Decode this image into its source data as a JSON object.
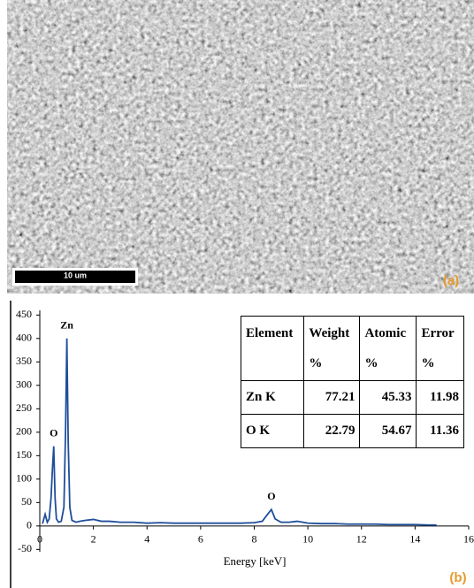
{
  "image": {
    "scale_bar": "10 um",
    "label": "(a)"
  },
  "chart_data": {
    "type": "line",
    "panel_label": "(b)",
    "x_label": "Energy [keV]",
    "xlim": [
      0,
      16
    ],
    "xticks": [
      0,
      2,
      4,
      6,
      8,
      10,
      12,
      14,
      16
    ],
    "ylim": [
      -55,
      460
    ],
    "yticks": [
      -50,
      0,
      50,
      100,
      150,
      200,
      250,
      300,
      350,
      400,
      450
    ],
    "series": [
      {
        "color": "#1f4e9a",
        "x": [
          0.1,
          0.2,
          0.28,
          0.35,
          0.42,
          0.47,
          0.52,
          0.57,
          0.62,
          0.7,
          0.8,
          0.9,
          0.96,
          1.01,
          1.06,
          1.12,
          1.2,
          1.35,
          1.5,
          1.7,
          2.0,
          2.3,
          2.6,
          3.0,
          3.5,
          4.0,
          4.5,
          5.0,
          5.5,
          6.0,
          6.5,
          7.0,
          7.5,
          8.0,
          8.3,
          8.5,
          8.64,
          8.78,
          9.0,
          9.3,
          9.6,
          10.0,
          10.5,
          11.0,
          11.5,
          12.0,
          12.5,
          13.0,
          13.5,
          14.0,
          14.5,
          14.8
        ],
        "values": [
          5,
          25,
          8,
          15,
          60,
          120,
          170,
          60,
          15,
          8,
          10,
          40,
          200,
          400,
          180,
          40,
          12,
          8,
          10,
          12,
          14,
          10,
          10,
          8,
          8,
          6,
          7,
          6,
          6,
          6,
          6,
          6,
          6,
          7,
          10,
          25,
          35,
          15,
          8,
          8,
          10,
          6,
          5,
          5,
          4,
          4,
          4,
          3,
          3,
          3,
          2,
          2
        ]
      }
    ],
    "annotations": [
      {
        "text": "Zn",
        "x": 1.01,
        "y": 400
      },
      {
        "text": "O",
        "x": 0.52,
        "y": 170
      },
      {
        "text": "O",
        "x": 8.64,
        "y": 35
      }
    ],
    "table": {
      "header": [
        [
          "Element"
        ],
        [
          "Weight",
          "%"
        ],
        [
          "Atomic",
          "%"
        ],
        [
          "Error",
          "%"
        ]
      ],
      "rows": [
        [
          "Zn K",
          "77.21",
          "45.33",
          "11.98"
        ],
        [
          "O K",
          "22.79",
          "54.67",
          "11.36"
        ]
      ]
    }
  }
}
